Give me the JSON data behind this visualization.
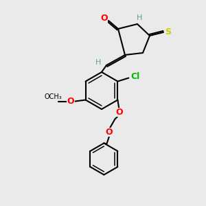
{
  "bg_color": "#eaeaea",
  "bond_color": "#000000",
  "atom_colors": {
    "O": "#ff0000",
    "N": "#0000cd",
    "S_thioxo": "#cccc00",
    "S_ring": "#000000",
    "Cl": "#00bb00",
    "H": "#5f9ea0",
    "C": "#000000"
  }
}
